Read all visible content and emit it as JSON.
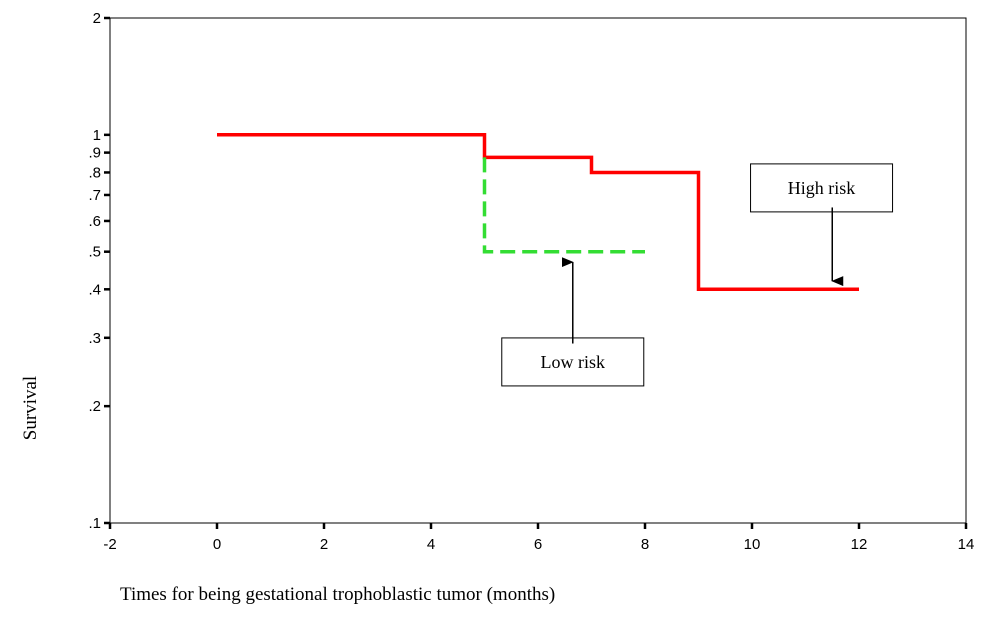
{
  "chart_data": {
    "type": "line",
    "title": "",
    "xlabel": "Times for being gestational trophoblastic tumor (months)",
    "ylabel": "Survival",
    "x_scale": "linear",
    "y_scale": "log",
    "xlim": [
      -2,
      14
    ],
    "ylim": [
      0.1,
      2
    ],
    "x_ticks": [
      -2,
      0,
      2,
      4,
      6,
      8,
      10,
      12,
      14
    ],
    "x_tick_labels": [
      "-2",
      "0",
      "2",
      "4",
      "6",
      "8",
      "10",
      "12",
      "14"
    ],
    "y_ticks": [
      0.1,
      0.2,
      0.3,
      0.4,
      0.5,
      0.6,
      0.7,
      0.8,
      0.9,
      1,
      2
    ],
    "y_tick_labels": [
      ".1",
      ".2",
      ".3",
      ".4",
      ".5",
      ".6",
      ".7",
      ".8",
      ".9",
      "1",
      "2"
    ],
    "grid": false,
    "series": [
      {
        "name": "High risk",
        "step": true,
        "color": "#ff0000",
        "dash": "solid",
        "x": [
          0,
          5,
          5,
          7,
          7,
          9,
          9,
          12
        ],
        "y": [
          1,
          1,
          0.875,
          0.875,
          0.8,
          0.8,
          0.4,
          0.4
        ]
      },
      {
        "name": "Low risk",
        "step": true,
        "color": "#33dd33",
        "dash": "dashed",
        "x": [
          5,
          5,
          8
        ],
        "y": [
          0.875,
          0.5,
          0.5
        ]
      }
    ],
    "annotations": [
      {
        "text": "High risk",
        "box_at": [
          11.3,
          0.73
        ],
        "arrow_from": [
          11.5,
          0.65
        ],
        "arrow_to": [
          11.5,
          0.42
        ]
      },
      {
        "text": "Low risk",
        "box_at": [
          6.65,
          0.26
        ],
        "arrow_from": [
          6.65,
          0.29
        ],
        "arrow_to": [
          6.65,
          0.47
        ]
      }
    ]
  }
}
